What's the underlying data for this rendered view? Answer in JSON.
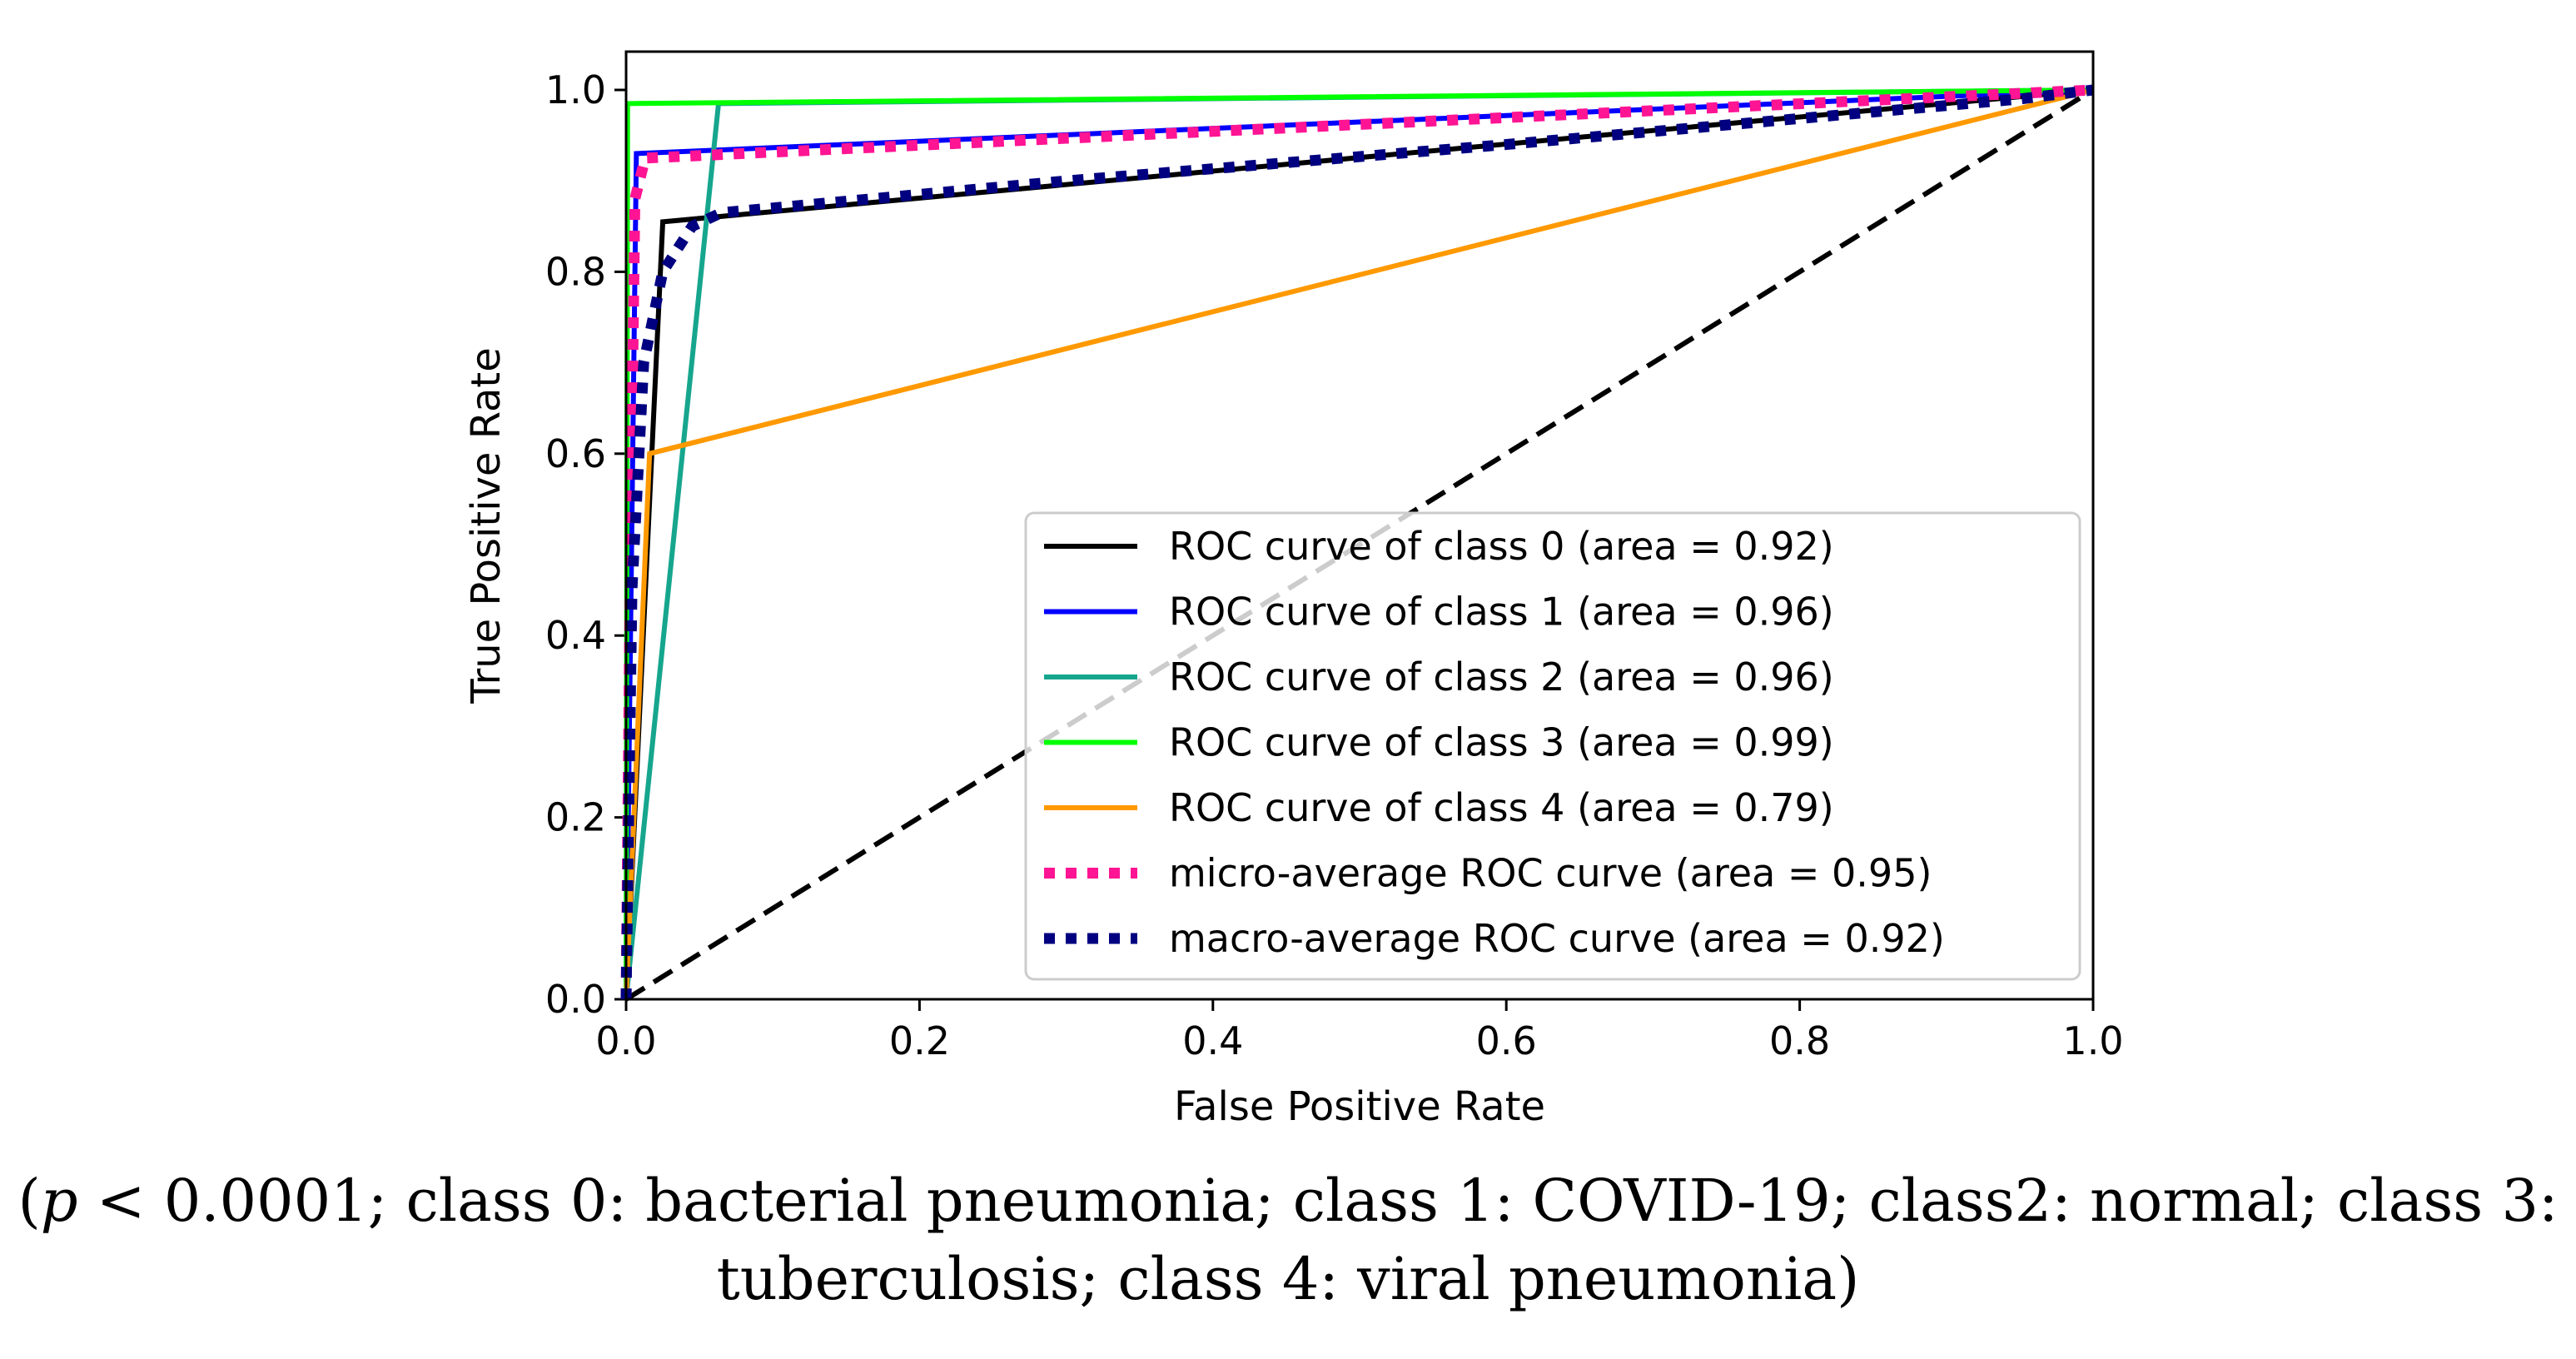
{
  "chart_data": {
    "type": "line",
    "xlabel": "False Positive Rate",
    "ylabel": "True Positive Rate",
    "xlim": [
      0.0,
      1.0
    ],
    "ylim": [
      0.0,
      1.0
    ],
    "xticks": [
      "0.0",
      "0.2",
      "0.4",
      "0.6",
      "0.8",
      "1.0"
    ],
    "yticks": [
      "0.0",
      "0.2",
      "0.4",
      "0.6",
      "0.8",
      "1.0"
    ],
    "legend_position": "lower-right",
    "series": [
      {
        "name": "ROC curve of class 0 (area = 0.92)",
        "color": "#000000",
        "style": "solid",
        "x": [
          0.0,
          0.0,
          0.025,
          1.0
        ],
        "y": [
          0.0,
          0.0,
          0.855,
          1.0
        ]
      },
      {
        "name": "ROC curve of class 1 (area = 0.96)",
        "color": "#0000ff",
        "style": "solid",
        "x": [
          0.0,
          0.0,
          0.007,
          1.0
        ],
        "y": [
          0.0,
          0.0,
          0.93,
          1.0
        ]
      },
      {
        "name": "ROC curve of class 2 (area = 0.96)",
        "color": "#16a68e",
        "style": "solid",
        "x": [
          0.0,
          0.0,
          0.063,
          1.0
        ],
        "y": [
          0.0,
          0.0,
          0.985,
          1.0
        ]
      },
      {
        "name": "ROC curve of class 3 (area = 0.99)",
        "color": "#00ff00",
        "style": "solid",
        "x": [
          0.0,
          0.0,
          0.001,
          1.0
        ],
        "y": [
          0.0,
          0.0,
          0.985,
          1.0
        ]
      },
      {
        "name": "ROC curve of class 4 (area = 0.79)",
        "color": "#ff9900",
        "style": "solid",
        "x": [
          0.0,
          0.0,
          0.016,
          1.0
        ],
        "y": [
          0.0,
          0.0,
          0.6,
          1.0
        ]
      },
      {
        "name": "micro-average ROC curve (area = 0.95)",
        "color": "#ff1493",
        "style": "dotted",
        "x": [
          0.0,
          0.003,
          0.006,
          0.013,
          1.0
        ],
        "y": [
          0.0,
          0.5,
          0.88,
          0.925,
          1.0
        ]
      },
      {
        "name": "macro-average ROC curve (area = 0.92)",
        "color": "#000080",
        "style": "dotted",
        "x": [
          0.0,
          0.004,
          0.012,
          0.025,
          0.045,
          0.065,
          0.3,
          0.6,
          0.95,
          1.0
        ],
        "y": [
          0.0,
          0.45,
          0.7,
          0.8,
          0.85,
          0.865,
          0.9,
          0.94,
          0.99,
          1.0
        ]
      }
    ],
    "reference_line": {
      "x": [
        0.0,
        1.0
      ],
      "y": [
        0.0,
        1.0
      ],
      "color": "#000000",
      "style": "dashed"
    }
  },
  "caption": {
    "p_symbol": "p",
    "text": " < 0.0001; class 0: bacterial pneumonia; class 1: COVID-19; class2: normal; class 3:",
    "line2": "tuberculosis; class 4: viral pneumonia)",
    "open_paren": "("
  }
}
